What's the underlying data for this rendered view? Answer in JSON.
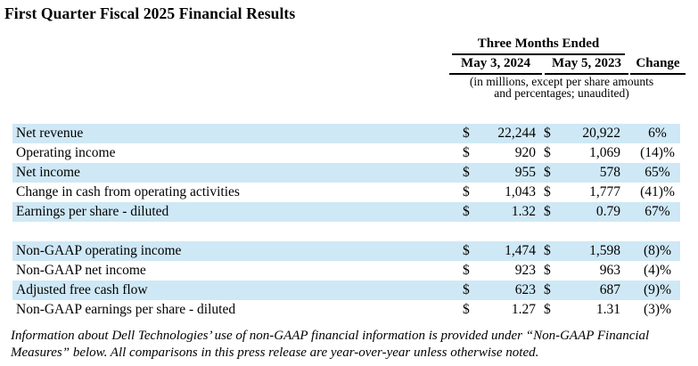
{
  "title": "First Quarter Fiscal 2025 Financial Results",
  "table": {
    "header": {
      "group": "Three Months Ended",
      "col_2024": "May 3, 2024",
      "col_2023": "May 5, 2023",
      "col_change": "Change",
      "note_line1": "(in millions, except per share amounts",
      "note_line2": "and percentages; unaudited)"
    },
    "currency_symbol": "$",
    "rows": [
      {
        "label": "Net revenue",
        "may_3_2024": "22,244",
        "may_5_2023": "20,922",
        "change": "6%"
      },
      {
        "label": "Operating income",
        "may_3_2024": "920",
        "may_5_2023": "1,069",
        "change": "(14)%"
      },
      {
        "label": "Net income",
        "may_3_2024": "955",
        "may_5_2023": "578",
        "change": "65%"
      },
      {
        "label": "Change in cash from operating activities",
        "may_3_2024": "1,043",
        "may_5_2023": "1,777",
        "change": "(41)%"
      },
      {
        "label": "Earnings per share - diluted",
        "may_3_2024": "1.32",
        "may_5_2023": "0.79",
        "change": "67%"
      },
      {
        "label": "Non-GAAP operating income",
        "may_3_2024": "1,474",
        "may_5_2023": "1,598",
        "change": "(8)%"
      },
      {
        "label": "Non-GAAP net income",
        "may_3_2024": "923",
        "may_5_2023": "963",
        "change": "(4)%"
      },
      {
        "label": "Adjusted free cash flow",
        "may_3_2024": "623",
        "may_5_2023": "687",
        "change": "(9)%"
      },
      {
        "label": "Non-GAAP earnings per share - diluted",
        "may_3_2024": "1.27",
        "may_5_2023": "1.31",
        "change": "(3)%"
      }
    ]
  },
  "colors": {
    "row_highlight": "#cfe8f6",
    "rule": "#000000"
  },
  "footnote": {
    "line1": "Information about Dell Technologies’ use of non-GAAP financial information is provided under “Non-GAAP Financial",
    "line2": "Measures” below. All comparisons in this press release are year-over-year unless otherwise noted."
  }
}
